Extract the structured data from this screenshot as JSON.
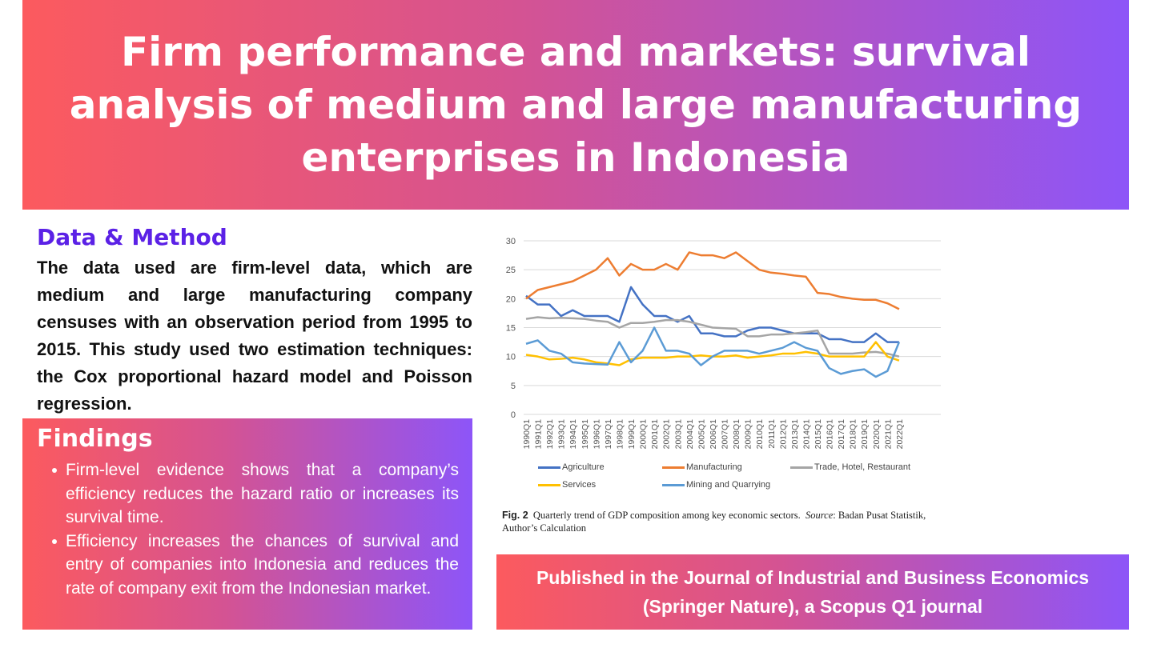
{
  "title": "Firm performance and markets: survival analysis of medium and large manufacturing enterprises in Indonesia",
  "data_method": {
    "heading": "Data & Method",
    "text": "The data used are firm-level data, which are medium and large manufacturing company censuses with an observation period from 1995 to 2015. This study used two estimation techniques: the Cox proportional hazard model and Poisson regression."
  },
  "findings": {
    "heading": "Findings",
    "items": [
      "Firm-level evidence shows that a company’s efficiency reduces the hazard ratio or increases its survival time.",
      "Efficiency increases the chances of survival and entry of companies into Indonesia and reduces the rate of company exit from the Indonesian market."
    ]
  },
  "caption": {
    "fig": "Fig. 2",
    "text": "Quarterly trend of GDP composition among key economic sectors.",
    "source_label": "Source",
    "source": ": Badan Pusat Statistik, Author’s Calculation"
  },
  "publication": "Published in the Journal of Industrial and Business Economics (Springer Nature), a Scopus Q1 journal",
  "colors": {
    "gradient_start": "#fc5a5e",
    "gradient_end": "#8d55f8",
    "heading": "#5b21e6"
  },
  "chart_data": {
    "type": "line",
    "title": "",
    "xlabel": "",
    "ylabel": "",
    "ylim": [
      0,
      30
    ],
    "yticks": [
      "0",
      "5",
      "10",
      "15",
      "20",
      "25",
      "30"
    ],
    "grid": true,
    "legend_position": "bottom",
    "x": [
      "1990Q1",
      "1991Q1",
      "1992Q1",
      "1993Q1",
      "1994Q1",
      "1995Q1",
      "1996Q1",
      "1997Q1",
      "1998Q1",
      "1999Q1",
      "2000Q1",
      "2001Q1",
      "2002Q1",
      "2003Q1",
      "2004Q1",
      "2005Q1",
      "2006Q1",
      "2007Q1",
      "2008Q1",
      "2009Q1",
      "2010Q1",
      "2011Q1",
      "2012Q1",
      "2013Q1",
      "2014Q1",
      "2015Q1",
      "2016Q1",
      "2017Q1",
      "2018Q1",
      "2019Q1",
      "2020Q1",
      "2021Q1",
      "2022Q1"
    ],
    "series": [
      {
        "name": "Agriculture",
        "color": "#4472c4",
        "values": [
          20.5,
          19,
          19,
          17,
          18,
          17,
          17,
          17,
          16,
          22,
          19,
          17,
          17,
          16,
          17,
          14,
          14,
          13.5,
          13.5,
          14.5,
          15,
          15,
          14.5,
          14,
          14,
          14,
          13,
          13,
          12.5,
          12.5,
          14,
          12.5,
          12.5
        ]
      },
      {
        "name": "Manufacturing",
        "color": "#ed7d31",
        "values": [
          20,
          21.5,
          22,
          22.5,
          23,
          24,
          25,
          27,
          24,
          26,
          25,
          25,
          26,
          25,
          28,
          27.5,
          27.5,
          27,
          28,
          26.5,
          25,
          24.5,
          24.3,
          24,
          23.8,
          21,
          20.8,
          20.3,
          20,
          19.8,
          19.8,
          19.2,
          18.2
        ]
      },
      {
        "name": "Trade, Hotel, Restaurant",
        "color": "#a5a5a5",
        "values": [
          16.5,
          16.8,
          16.6,
          16.7,
          16.6,
          16.5,
          16.2,
          16,
          15,
          15.8,
          15.8,
          16,
          16.3,
          16.3,
          16,
          15.5,
          15,
          14.9,
          14.8,
          13.5,
          13.5,
          13.8,
          13.8,
          14,
          14.2,
          14.5,
          10.5,
          10.5,
          10.5,
          10.7,
          10.8,
          10.5,
          10
        ]
      },
      {
        "name": "Services",
        "color": "#ffc000",
        "values": [
          10.3,
          10,
          9.5,
          9.6,
          9.8,
          9.5,
          9,
          8.8,
          8.5,
          9.5,
          9.8,
          9.8,
          9.8,
          10,
          10,
          10.2,
          10,
          10,
          10.2,
          9.8,
          10,
          10.2,
          10.5,
          10.5,
          10.8,
          10.5,
          10,
          10,
          10,
          10,
          12.5,
          10,
          9.3
        ]
      },
      {
        "name": "Mining and Quarrying",
        "color": "#5b9bd5",
        "values": [
          12.2,
          12.8,
          11,
          10.5,
          9,
          8.8,
          8.7,
          8.6,
          12.5,
          9,
          11,
          15,
          11,
          11,
          10.5,
          8.5,
          10,
          11,
          11,
          11,
          10.5,
          11,
          11.5,
          12.5,
          11.5,
          11,
          8,
          7,
          7.5,
          7.8,
          6.5,
          7.5,
          12.5
        ]
      }
    ]
  }
}
